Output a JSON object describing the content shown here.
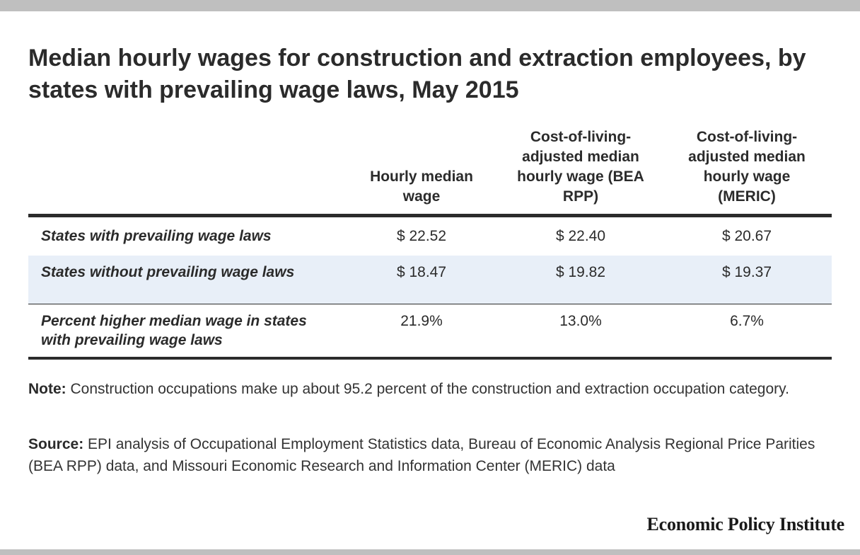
{
  "chart_data": {
    "type": "table",
    "title": "Median hourly wages for construction and extraction employees, by states with prevailing wage laws, May 2015",
    "columns": [
      "",
      "Hourly median wage",
      "Cost-of-living-adjusted median hourly wage (BEA RPP)",
      "Cost-of-living-adjusted median hourly wage (MERIC)"
    ],
    "rows": [
      {
        "label": "States with prevailing wage laws",
        "values": [
          "$ 22.52",
          "$ 22.40",
          "$ 20.67"
        ]
      },
      {
        "label": "States without prevailing wage laws",
        "values": [
          "$ 18.47",
          "$ 19.82",
          "$ 19.37"
        ]
      },
      {
        "label": "Percent higher median wage in states with prevailing wage laws",
        "values": [
          "21.9%",
          "13.0%",
          "6.7%"
        ]
      }
    ],
    "numeric": {
      "States with prevailing wage laws": [
        22.52,
        22.4,
        20.67
      ],
      "States without prevailing wage laws": [
        18.47,
        19.82,
        19.37
      ],
      "Percent higher median wage in states with prevailing wage laws": [
        21.9,
        13.0,
        6.7
      ]
    }
  },
  "notes": {
    "note_label": "Note:",
    "note_text": " Construction occupations make up about 95.2 percent of the construction and extraction occupation category.",
    "source_label": "Source:",
    "source_text": " EPI analysis of Occupational Employment Statistics data, Bureau of Economic Analysis Regional Price Parities (BEA RPP) data, and Missouri Economic Research and Information Center (MERIC) data"
  },
  "branding": {
    "name": "Economic Policy Institute"
  },
  "colors": {
    "band": "#bfbfbf",
    "row_highlight": "#e8eff8",
    "text": "#2b2b2b"
  }
}
